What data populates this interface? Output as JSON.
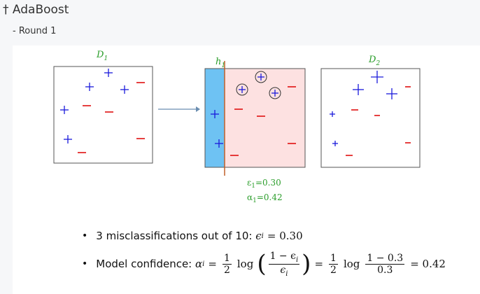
{
  "header": {
    "title": "† AdaBoost",
    "subtitle": "- Round 1"
  },
  "slide": {
    "panels": [
      {
        "label": "D",
        "label_sub": "1"
      },
      {
        "label": "h",
        "label_sub": "1"
      },
      {
        "label": "D",
        "label_sub": "2"
      }
    ],
    "error": {
      "symbol": "ε",
      "sub": "1",
      "text": "=0.30"
    },
    "alpha": {
      "symbol": "α",
      "sub": "1",
      "text": "=0.42"
    },
    "bullet1": {
      "text": "3 misclassifications out of 10:",
      "sym": "ϵ",
      "sub": "i",
      "rest": "= 0.30"
    },
    "bullet2": {
      "text": "Model confidence:",
      "lhs": "α",
      "lhs_sub": "i",
      "eq1": "=",
      "half_num": "1",
      "half_den": "2",
      "log": "log",
      "lparen": "(",
      "frac_num": "1 − ϵ",
      "frac_num_sub": "i",
      "frac_den": "ϵ",
      "frac_den_sub": "i",
      "rparen": ")",
      "eq2": "=",
      "half2_num": "1",
      "half2_den": "2",
      "log2": "log",
      "frac2_num": "1 − 0.3",
      "frac2_den": "0.3",
      "result": "= 0.42"
    }
  }
}
